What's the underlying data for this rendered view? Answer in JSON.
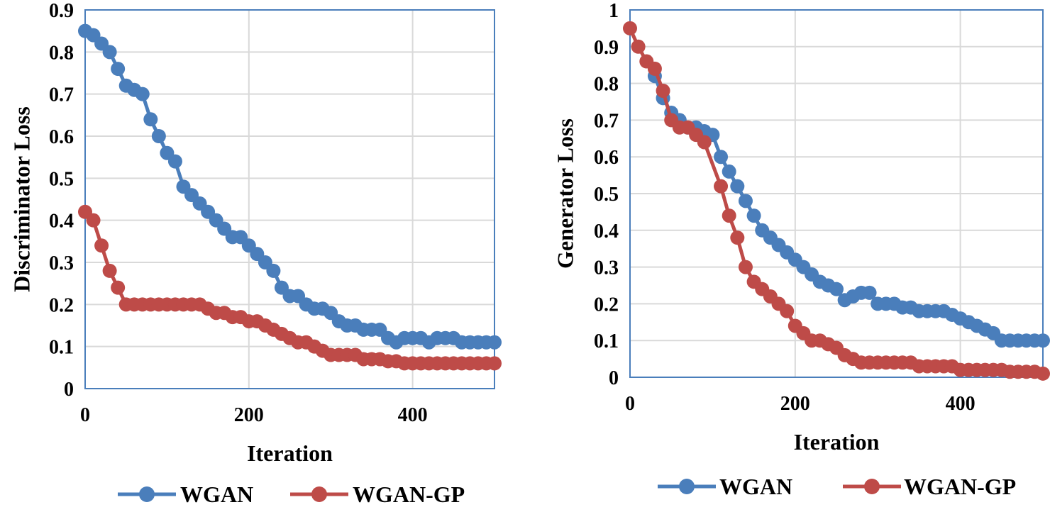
{
  "colors": {
    "wgan": "#4a7ebb",
    "wgan_gp": "#be4b48",
    "grid": "#d9d9d9",
    "frame": "#4a7ebb"
  },
  "chart_data": [
    {
      "type": "line",
      "title": "",
      "xlabel": "Iteration",
      "ylabel": "Discriminator Loss",
      "xlim": [
        0,
        500
      ],
      "ylim": [
        0,
        0.9
      ],
      "x_ticks": [
        0,
        200,
        400
      ],
      "x_tick_labels": [
        "0",
        "200",
        "400"
      ],
      "y_ticks": [
        0,
        0.1,
        0.2,
        0.3,
        0.4,
        0.5,
        0.6,
        0.7,
        0.8,
        0.9
      ],
      "y_tick_labels": [
        "0",
        "0.1",
        "0.2",
        "0.3",
        "0.4",
        "0.5",
        "0.6",
        "0.7",
        "0.8",
        "0.9"
      ],
      "grid": true,
      "legend_position": "bottom",
      "series": [
        {
          "name": "WGAN",
          "color_key": "wgan",
          "x": [
            0,
            10,
            20,
            30,
            40,
            50,
            60,
            70,
            80,
            90,
            100,
            110,
            120,
            130,
            140,
            150,
            160,
            170,
            180,
            190,
            200,
            210,
            220,
            230,
            240,
            250,
            260,
            270,
            280,
            290,
            300,
            310,
            320,
            330,
            340,
            350,
            360,
            370,
            380,
            390,
            400,
            410,
            420,
            430,
            440,
            450,
            460,
            470,
            480,
            490,
            500
          ],
          "y": [
            0.85,
            0.84,
            0.82,
            0.8,
            0.76,
            0.72,
            0.71,
            0.7,
            0.64,
            0.6,
            0.56,
            0.54,
            0.48,
            0.46,
            0.44,
            0.42,
            0.4,
            0.38,
            0.36,
            0.36,
            0.34,
            0.32,
            0.3,
            0.28,
            0.24,
            0.22,
            0.22,
            0.2,
            0.19,
            0.19,
            0.18,
            0.16,
            0.15,
            0.15,
            0.14,
            0.14,
            0.14,
            0.12,
            0.11,
            0.12,
            0.12,
            0.12,
            0.11,
            0.12,
            0.12,
            0.12,
            0.11,
            0.11,
            0.11,
            0.11,
            0.11
          ]
        },
        {
          "name": "WGAN-GP",
          "color_key": "wgan_gp",
          "x": [
            0,
            10,
            20,
            30,
            40,
            50,
            60,
            70,
            80,
            90,
            100,
            110,
            120,
            130,
            140,
            150,
            160,
            170,
            180,
            190,
            200,
            210,
            220,
            230,
            240,
            250,
            260,
            270,
            280,
            290,
            300,
            310,
            320,
            330,
            340,
            350,
            360,
            370,
            380,
            390,
            400,
            410,
            420,
            430,
            440,
            450,
            460,
            470,
            480,
            490,
            500
          ],
          "y": [
            0.42,
            0.4,
            0.34,
            0.28,
            0.24,
            0.2,
            0.2,
            0.2,
            0.2,
            0.2,
            0.2,
            0.2,
            0.2,
            0.2,
            0.2,
            0.19,
            0.18,
            0.18,
            0.17,
            0.17,
            0.16,
            0.16,
            0.15,
            0.14,
            0.13,
            0.12,
            0.11,
            0.11,
            0.1,
            0.09,
            0.08,
            0.08,
            0.08,
            0.08,
            0.07,
            0.07,
            0.07,
            0.065,
            0.065,
            0.06,
            0.06,
            0.06,
            0.06,
            0.06,
            0.06,
            0.06,
            0.06,
            0.06,
            0.06,
            0.06,
            0.06
          ]
        }
      ]
    },
    {
      "type": "line",
      "title": "",
      "xlabel": "Iteration",
      "ylabel": "Generator Loss",
      "xlim": [
        0,
        500
      ],
      "ylim": [
        0,
        1
      ],
      "x_ticks": [
        0,
        200,
        400
      ],
      "x_tick_labels": [
        "0",
        "200",
        "400"
      ],
      "y_ticks": [
        0,
        0.1,
        0.2,
        0.3,
        0.4,
        0.5,
        0.6,
        0.7,
        0.8,
        0.9,
        1
      ],
      "y_tick_labels": [
        "0",
        "0.1",
        "0.2",
        "0.3",
        "0.4",
        "0.5",
        "0.6",
        "0.7",
        "0.8",
        "0.9",
        "1"
      ],
      "grid": true,
      "legend_position": "bottom",
      "series": [
        {
          "name": "WGAN",
          "color_key": "wgan",
          "x": [
            30,
            40,
            50,
            60,
            70,
            80,
            90,
            100,
            110,
            120,
            130,
            140,
            150,
            160,
            170,
            180,
            190,
            200,
            210,
            220,
            230,
            240,
            250,
            260,
            270,
            280,
            290,
            300,
            310,
            320,
            330,
            340,
            350,
            360,
            370,
            380,
            390,
            400,
            410,
            420,
            430,
            440,
            450,
            460,
            470,
            480,
            490,
            500
          ],
          "y": [
            0.82,
            0.76,
            0.72,
            0.7,
            0.68,
            0.68,
            0.67,
            0.66,
            0.6,
            0.56,
            0.52,
            0.48,
            0.44,
            0.4,
            0.38,
            0.36,
            0.34,
            0.32,
            0.3,
            0.28,
            0.26,
            0.25,
            0.24,
            0.21,
            0.22,
            0.23,
            0.23,
            0.2,
            0.2,
            0.2,
            0.19,
            0.19,
            0.18,
            0.18,
            0.18,
            0.18,
            0.17,
            0.16,
            0.15,
            0.14,
            0.13,
            0.12,
            0.1,
            0.1,
            0.1,
            0.1,
            0.1,
            0.1
          ]
        },
        {
          "name": "WGAN-GP",
          "color_key": "wgan_gp",
          "x": [
            0,
            10,
            20,
            30,
            40,
            50,
            60,
            70,
            80,
            90,
            110,
            120,
            130,
            140,
            150,
            160,
            170,
            180,
            190,
            200,
            210,
            220,
            230,
            240,
            250,
            260,
            270,
            280,
            290,
            300,
            310,
            320,
            330,
            340,
            350,
            360,
            370,
            380,
            390,
            400,
            410,
            420,
            430,
            440,
            450,
            460,
            470,
            480,
            490,
            500
          ],
          "y": [
            0.95,
            0.9,
            0.86,
            0.84,
            0.78,
            0.7,
            0.68,
            0.68,
            0.66,
            0.64,
            0.52,
            0.44,
            0.38,
            0.3,
            0.26,
            0.24,
            0.22,
            0.2,
            0.18,
            0.14,
            0.12,
            0.1,
            0.1,
            0.09,
            0.08,
            0.06,
            0.05,
            0.04,
            0.04,
            0.04,
            0.04,
            0.04,
            0.04,
            0.04,
            0.03,
            0.03,
            0.03,
            0.03,
            0.03,
            0.02,
            0.02,
            0.02,
            0.02,
            0.02,
            0.02,
            0.015,
            0.015,
            0.015,
            0.015,
            0.01
          ]
        }
      ]
    }
  ]
}
